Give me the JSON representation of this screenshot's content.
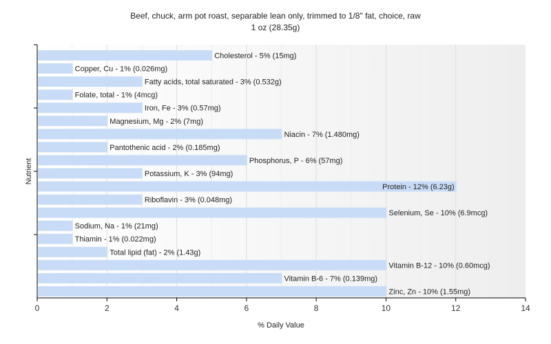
{
  "chart_data": {
    "type": "bar",
    "orientation": "horizontal",
    "title": "Beef, chuck, arm pot roast, separable lean only, trimmed to 1/8\" fat, choice, raw",
    "subtitle": "1 oz (28.35g)",
    "xlabel": "% Daily Value",
    "ylabel": "Nutrient",
    "xlim": [
      0,
      14
    ],
    "xticks": [
      0,
      2,
      4,
      6,
      8,
      10,
      12,
      14
    ],
    "grid": true,
    "bar_color": "#c9dcf7",
    "categories": [
      "Cholesterol",
      "Copper, Cu",
      "Fatty acids, total saturated",
      "Folate, total",
      "Iron, Fe",
      "Magnesium, Mg",
      "Niacin",
      "Pantothenic acid",
      "Phosphorus, P",
      "Potassium, K",
      "Protein",
      "Riboflavin",
      "Selenium, Se",
      "Sodium, Na",
      "Thiamin",
      "Total lipid (fat)",
      "Vitamin B-12",
      "Vitamin B-6",
      "Zinc, Zn"
    ],
    "values": [
      5,
      1,
      3,
      1,
      3,
      2,
      7,
      2,
      6,
      3,
      12,
      3,
      10,
      1,
      1,
      2,
      10,
      7,
      10
    ],
    "labels": [
      "Cholesterol - 5% (15mg)",
      "Copper, Cu - 1% (0.026mg)",
      "Fatty acids, total saturated - 3% (0.532g)",
      "Folate, total - 1% (4mcg)",
      "Iron, Fe - 3% (0.57mg)",
      "Magnesium, Mg - 2% (7mg)",
      "Niacin - 7% (1.480mg)",
      "Pantothenic acid - 2% (0.185mg)",
      "Phosphorus, P - 6% (57mg)",
      "Potassium, K - 3% (94mg)",
      "Protein - 12% (6.23g)",
      "Riboflavin - 3% (0.048mg)",
      "Selenium, Se - 10% (6.9mcg)",
      "Sodium, Na - 1% (21mg)",
      "Thiamin - 1% (0.022mg)",
      "Total lipid (fat) - 2% (1.43g)",
      "Vitamin B-12 - 10% (0.60mcg)",
      "Vitamin B-6 - 7% (0.139mg)",
      "Zinc, Zn - 10% (1.55mg)"
    ]
  }
}
